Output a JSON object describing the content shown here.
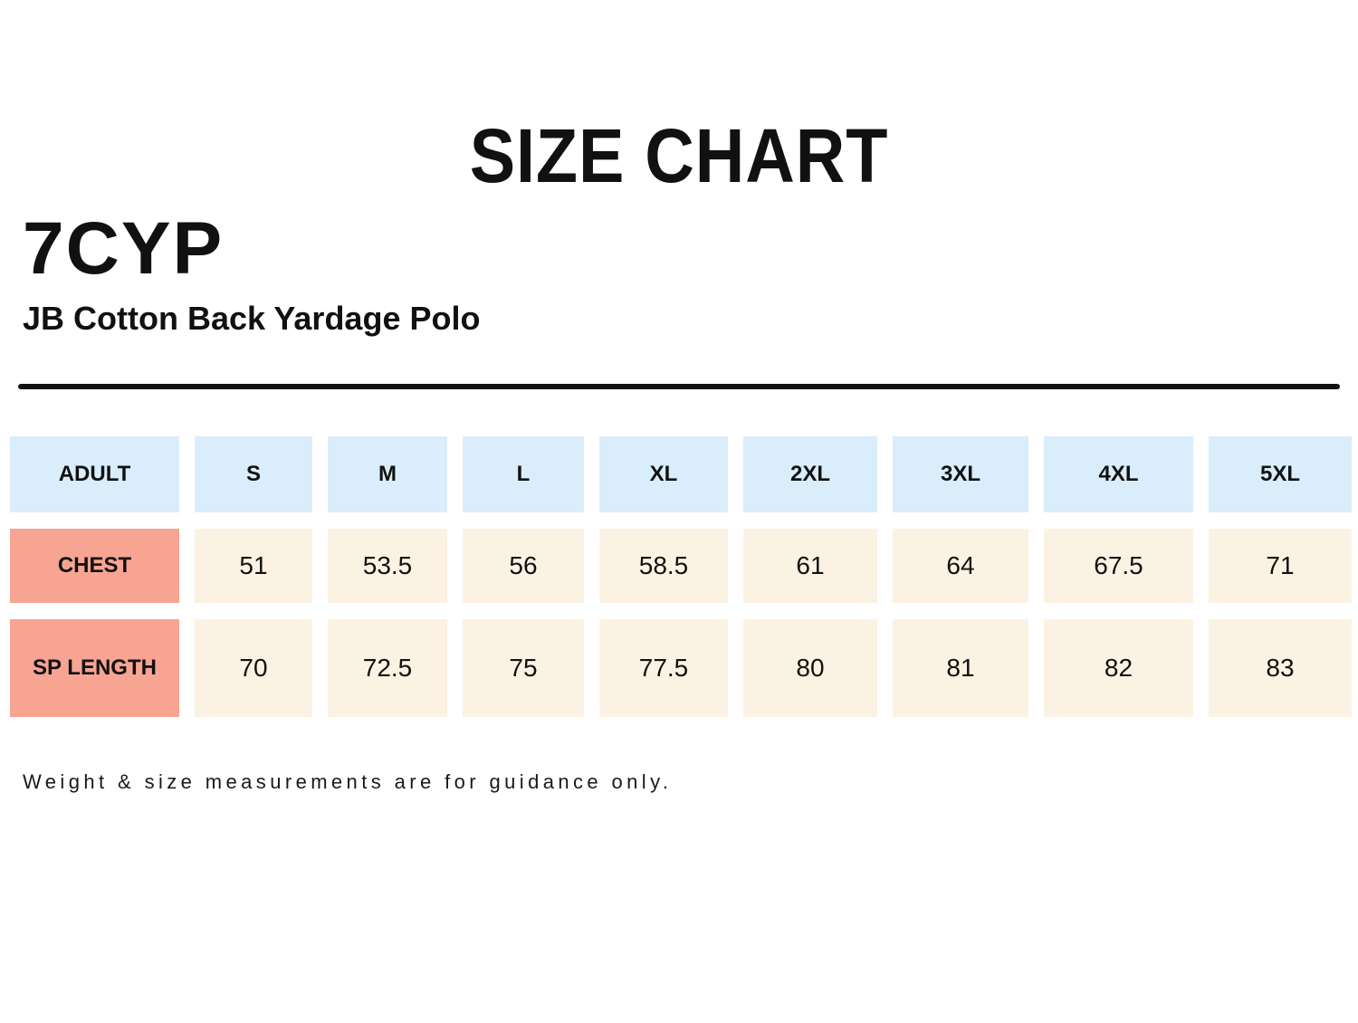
{
  "header": {
    "title": "SIZE CHART",
    "product_code": "7CYP",
    "product_name": "JB Cotton Back Yardage Polo"
  },
  "footer": {
    "note": "Weight & size measurements are for guidance only."
  },
  "colors": {
    "size_header_bg": "#D9EDFB",
    "measure_label_bg": "#F8A492",
    "value_bg": "#FCF2E3",
    "text": "#111111",
    "divider": "#111111"
  },
  "chart_data": {
    "type": "table",
    "title": "SIZE CHART",
    "columns": [
      "ADULT",
      "S",
      "M",
      "L",
      "XL",
      "2XL",
      "3XL",
      "4XL",
      "5XL"
    ],
    "rows": [
      {
        "label": "CHEST",
        "values": [
          "51",
          "53.5",
          "56",
          "58.5",
          "61",
          "64",
          "67.5",
          "71"
        ]
      },
      {
        "label": "SP LENGTH",
        "values": [
          "70",
          "72.5",
          "75",
          "77.5",
          "80",
          "81",
          "82",
          "83"
        ]
      }
    ],
    "note": "Weight & size measurements are for guidance only."
  }
}
